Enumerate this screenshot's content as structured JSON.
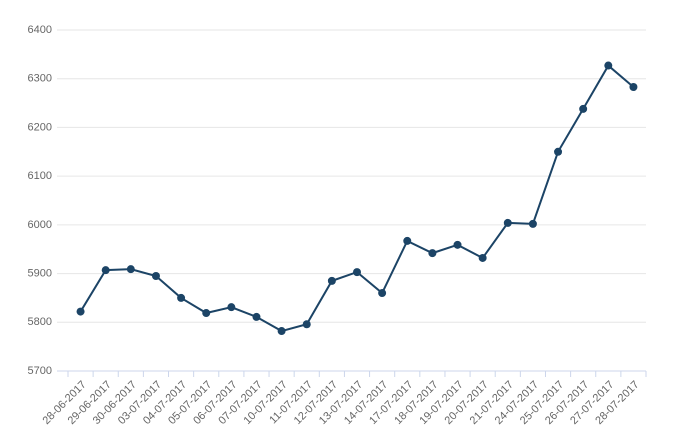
{
  "chart_data": {
    "type": "line",
    "categories": [
      "28-06-2017",
      "29-06-2017",
      "30-06-2017",
      "03-07-2017",
      "04-07-2017",
      "05-07-2017",
      "06-07-2017",
      "07-07-2017",
      "10-07-2017",
      "11-07-2017",
      "12-07-2017",
      "13-07-2017",
      "14-07-2017",
      "17-07-2017",
      "18-07-2017",
      "19-07-2017",
      "20-07-2017",
      "21-07-2017",
      "24-07-2017",
      "25-07-2017",
      "26-07-2017",
      "27-07-2017",
      "28-07-2017"
    ],
    "values": [
      5822,
      5907,
      5909,
      5895,
      5850,
      5819,
      5831,
      5811,
      5782,
      5796,
      5885,
      5903,
      5860,
      5967,
      5942,
      5959,
      5932,
      6004,
      6002,
      6150,
      6238,
      6327,
      6283
    ],
    "color": "#1c4466",
    "ylim": [
      5700,
      6400
    ],
    "yticks": [
      5700,
      5800,
      5900,
      6000,
      6100,
      6200,
      6300,
      6400
    ],
    "grid": true
  }
}
